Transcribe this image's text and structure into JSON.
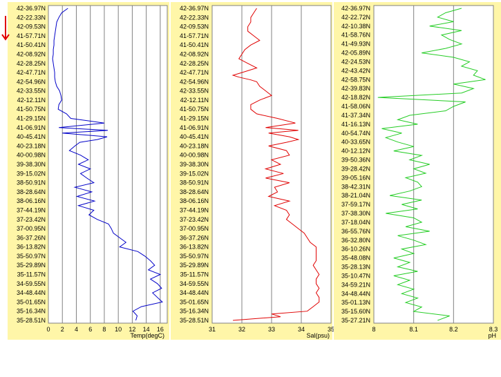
{
  "page": {
    "background": "#ffffff",
    "panel_background": "#fff6a8",
    "plot_background": "#ffffff",
    "grid_color": "#808080",
    "arrow_color": "#e00000",
    "arrow_icon": "down-arrow-icon"
  },
  "chart_data": [
    {
      "type": "line",
      "xlabel": "Temp(degC)",
      "xlim": [
        0,
        17
      ],
      "xticks": [
        0,
        2,
        4,
        6,
        8,
        10,
        12,
        14,
        16
      ],
      "grid": "vertical",
      "legend": "none",
      "color": "#0000c8",
      "ylabels": [
        "42-36.97N",
        "42-22.33N",
        "42-09.53N",
        "41-57.71N",
        "41-50.41N",
        "42-08.92N",
        "42-28.25N",
        "42-47.71N",
        "42-54.96N",
        "42-33.55N",
        "42-12.11N",
        "41-50.75N",
        "41-29.15N",
        "41-06.91N",
        "40-45.41N",
        "40-23.18N",
        "40-00.98N",
        "39-38.30N",
        "39-15.02N",
        "38-50.91N",
        "38-28.64N",
        "38-06.16N",
        "37-44.19N",
        "37-23.42N",
        "37-00.95N",
        "36-37.26N",
        "36-13.82N",
        "35-50.97N",
        "35-29.89N",
        "35-11.57N",
        "34-59.55N",
        "34-48.44N",
        "35-01.65N",
        "35-16.34N",
        "35-28.51N"
      ],
      "series": [
        {
          "y": [
            0,
            0.5,
            1,
            1.5,
            2,
            2.5,
            3,
            3.5,
            4,
            4.5,
            5,
            5.5,
            6,
            6.5,
            7,
            7.5,
            8,
            8.5,
            9,
            9.5,
            10,
            10.5,
            11,
            11.5,
            12,
            12.5,
            13,
            13.3,
            13.6,
            14,
            14.3,
            14.6,
            15,
            15.5,
            16,
            16.5,
            17,
            17.5,
            18,
            18.5,
            19,
            19.5,
            20,
            20.5,
            21,
            21.5,
            22,
            22.5,
            23,
            23.5,
            24,
            24.5,
            25,
            25.5,
            26,
            26.5,
            27,
            27.5,
            28,
            28.5,
            29,
            29.5,
            30,
            30.5,
            31,
            31.5,
            32,
            32.5,
            33,
            33.5,
            34
          ],
          "x": [
            2.8,
            1.9,
            1.5,
            1.2,
            1.1,
            1.0,
            0.9,
            0.8,
            0.8,
            0.7,
            0.7,
            0.6,
            0.7,
            0.8,
            0.9,
            0.9,
            1.0,
            1.2,
            1.6,
            1.8,
            1.9,
            1.5,
            1.4,
            2.6,
            3.2,
            8.0,
            1.5,
            8.5,
            2.0,
            8.4,
            7.0,
            4.5,
            3.8,
            3.0,
            4.6,
            5.7,
            4.3,
            6.0,
            4.6,
            5.5,
            6.5,
            3.8,
            6.2,
            4.1,
            6.6,
            4.3,
            6.5,
            5.8,
            7.0,
            8.6,
            9.0,
            9.3,
            10.2,
            11.1,
            10.2,
            12.8,
            13.8,
            14.6,
            15.2,
            14.3,
            16.0,
            14.6,
            15.6,
            16.2,
            14.9,
            15.6,
            16.3,
            13.3,
            12.1,
            12.7,
            12.5
          ]
        }
      ]
    },
    {
      "type": "line",
      "xlabel": "Sal(psu)",
      "xlim": [
        31,
        35
      ],
      "xticks": [
        31,
        32,
        33,
        34,
        35
      ],
      "grid": "vertical",
      "legend": "none",
      "color": "#e00000",
      "ylabels": [
        "42-36.97N",
        "42-22.33N",
        "42-09.53N",
        "41-57.71N",
        "41-50.41N",
        "42-08.92N",
        "42-28.25N",
        "42-47.71N",
        "42-54.96N",
        "42-33.55N",
        "42-12.11N",
        "41-50.75N",
        "41-29.15N",
        "41-06.91N",
        "40-45.41N",
        "40-23.18N",
        "40-00.98N",
        "39-38.30N",
        "39-15.02N",
        "38-50.91N",
        "38-28.64N",
        "38-06.16N",
        "37-44.19N",
        "37-23.42N",
        "37-00.95N",
        "36-37.26N",
        "36-13.82N",
        "35-50.97N",
        "35-29.89N",
        "35-11.57N",
        "34-59.55N",
        "34-48.44N",
        "35-01.65N",
        "35-16.34N",
        "35-28.51N"
      ],
      "series": [
        {
          "y": [
            0,
            0.5,
            1,
            1.5,
            2,
            2.5,
            3,
            3.5,
            4,
            4.5,
            5,
            5.5,
            6,
            6.5,
            7,
            7.3,
            7.5,
            7.8,
            8,
            8.5,
            9,
            9.5,
            10,
            10.5,
            11,
            11.5,
            12,
            12.5,
            13,
            13.3,
            13.6,
            14,
            14.3,
            14.6,
            15,
            15.5,
            16,
            16.5,
            17,
            17.5,
            18,
            18.5,
            19,
            19.5,
            20,
            20.5,
            21,
            21.5,
            22,
            22.5,
            23,
            23.5,
            24,
            24.5,
            25,
            25.5,
            26,
            26.5,
            27,
            27.5,
            28,
            28.5,
            29,
            29.5,
            30,
            30.5,
            31,
            31.5,
            32,
            32.5,
            33,
            33.3,
            33.6,
            34
          ],
          "x": [
            32.5,
            32.4,
            32.3,
            32.3,
            32.2,
            32.2,
            32.4,
            32.6,
            32.3,
            32.1,
            32.0,
            31.9,
            32.2,
            32.5,
            32.0,
            31.7,
            31.9,
            32.3,
            32.5,
            32.6,
            32.8,
            33.0,
            32.6,
            32.3,
            32.3,
            32.5,
            33.2,
            33.8,
            32.8,
            33.9,
            32.9,
            33.6,
            33.9,
            33.5,
            32.9,
            33.5,
            33.6,
            33.0,
            33.3,
            32.8,
            33.4,
            32.8,
            33.6,
            33.1,
            33.2,
            32.9,
            33.6,
            33.1,
            33.5,
            33.6,
            33.5,
            33.7,
            33.9,
            34.1,
            34.2,
            34.3,
            34.5,
            34.5,
            34.5,
            34.5,
            34.4,
            34.5,
            34.6,
            34.5,
            34.5,
            34.6,
            34.5,
            34.6,
            34.6,
            34.4,
            34.2,
            33.0,
            33.3,
            31.7
          ]
        }
      ]
    },
    {
      "type": "line",
      "xlabel": "pH",
      "xlim": [
        8,
        8.3
      ],
      "xticks": [
        8,
        8.1,
        8.2,
        8.3
      ],
      "grid": "vertical",
      "legend": "none",
      "color": "#22cc22",
      "ylabels": [
        "42-36.97N",
        "42-22.72N",
        "42-10.38N",
        "41-58.76N",
        "41-49.93N",
        "42-05.89N",
        "42-24.53N",
        "42-43.42N",
        "42-58.75N",
        "42-39.83N",
        "42-18.82N",
        "41-58.06N",
        "41-37.34N",
        "41-16.13N",
        "40-54.74N",
        "40-33.65N",
        "40-12.12N",
        "39-50.36N",
        "39-28.42N",
        "39-05.16N",
        "38-42.31N",
        "38-21.04N",
        "37-59.17N",
        "37-38.30N",
        "37-18.04N",
        "36-55.76N",
        "36-32.80N",
        "36-10.26N",
        "35-48.08N",
        "35-28.13N",
        "35-10.47N",
        "34-59.21N",
        "34-48.44N",
        "35-01.13N",
        "35-15.60N",
        "35-27.21N"
      ],
      "series": [
        {
          "y": [
            0,
            0.5,
            1,
            1.5,
            2,
            2.5,
            3,
            3.5,
            4,
            4.5,
            5,
            5.5,
            6,
            6.5,
            7,
            7.5,
            8,
            8.5,
            9,
            9.5,
            10,
            10.5,
            11,
            11.5,
            12,
            12.5,
            13,
            13.5,
            14,
            14.5,
            15,
            15.5,
            16,
            16.5,
            17,
            17.5,
            18,
            18.5,
            19,
            19.5,
            20,
            20.5,
            21,
            21.5,
            22,
            22.5,
            23,
            23.5,
            24,
            24.5,
            25,
            25.5,
            26,
            26.5,
            27,
            27.5,
            28,
            28.5,
            29,
            29.5,
            30,
            30.5,
            31,
            31.5,
            32,
            32.5,
            33,
            33.5,
            34,
            34.5,
            35
          ],
          "x": [
            8.22,
            8.18,
            8.16,
            8.2,
            8.14,
            8.22,
            8.17,
            8.19,
            8.22,
            8.18,
            8.12,
            8.2,
            8.24,
            8.22,
            8.26,
            8.25,
            8.28,
            8.2,
            8.25,
            8.22,
            8.01,
            8.23,
            8.2,
            8.18,
            8.09,
            8.06,
            8.11,
            8.02,
            8.07,
            8.03,
            8.06,
            8.1,
            8.05,
            8.12,
            8.09,
            8.14,
            8.1,
            8.13,
            8.08,
            8.11,
            8.12,
            8.09,
            8.04,
            8.12,
            8.07,
            8.11,
            8.03,
            8.1,
            8.12,
            8.08,
            8.14,
            8.06,
            8.1,
            8.13,
            8.07,
            8.1,
            8.05,
            8.09,
            8.06,
            8.11,
            8.05,
            8.09,
            8.06,
            8.1,
            8.07,
            8.11,
            8.08,
            8.12,
            8.1,
            8.19,
            8.16
          ]
        }
      ]
    }
  ]
}
